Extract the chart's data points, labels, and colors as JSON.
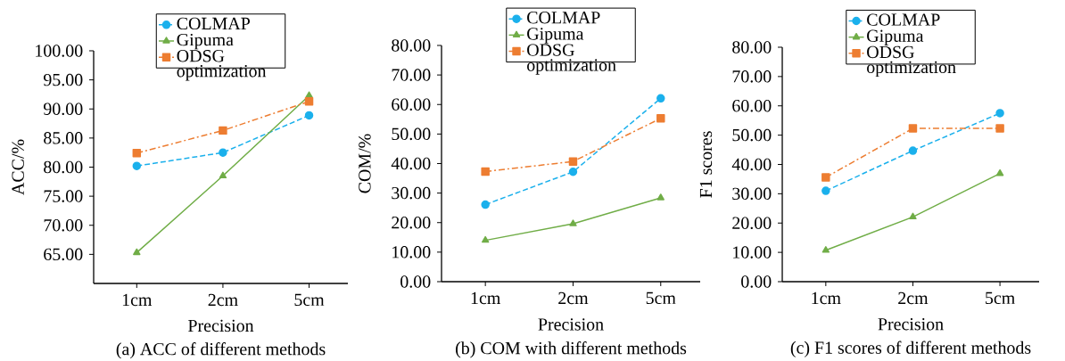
{
  "chart_data": [
    {
      "type": "line",
      "title": "(a) ACC of different methods",
      "xlabel": "Precision",
      "ylabel": "ACC/%",
      "categories": [
        "1cm",
        "2cm",
        "5cm"
      ],
      "series": [
        {
          "name": "COLMAP",
          "color": "#1ab0ec",
          "marker": "circle",
          "line_style": "dashed",
          "values": [
            80.2,
            82.5,
            88.9
          ]
        },
        {
          "name": "Gipuma",
          "color": "#70ad47",
          "marker": "triangle",
          "line_style": "solid",
          "values": [
            65.3,
            78.5,
            92.3
          ]
        },
        {
          "name": "ODSG optimization",
          "color": "#ed7d31",
          "marker": "square",
          "line_style": "dashdot",
          "values": [
            82.4,
            86.3,
            91.3
          ]
        }
      ],
      "ylim": [
        60,
        100
      ],
      "yticks": [
        {
          "value": 65,
          "label": "65.00"
        },
        {
          "value": 70,
          "label": "70.00"
        },
        {
          "value": 75,
          "label": "75.00"
        },
        {
          "value": 80,
          "label": "80.00"
        },
        {
          "value": 85,
          "label": "85.00"
        },
        {
          "value": 90,
          "label": "90.00"
        },
        {
          "value": 95,
          "label": "95.00"
        },
        {
          "value": 100,
          "label": "100.00"
        }
      ],
      "legend": "top",
      "grid": false
    },
    {
      "type": "line",
      "title": "(b) COM with different methods",
      "xlabel": "Precision",
      "ylabel": "COM/%",
      "categories": [
        "1cm",
        "2cm",
        "5cm"
      ],
      "series": [
        {
          "name": "COLMAP",
          "color": "#1ab0ec",
          "marker": "circle",
          "line_style": "dashed",
          "values": [
            26.1,
            37.2,
            62.1
          ]
        },
        {
          "name": "Gipuma",
          "color": "#70ad47",
          "marker": "triangle",
          "line_style": "solid",
          "values": [
            14.0,
            19.6,
            28.4
          ]
        },
        {
          "name": "ODSG optimization",
          "color": "#ed7d31",
          "marker": "square",
          "line_style": "dashdot",
          "values": [
            37.3,
            40.7,
            55.3
          ]
        }
      ],
      "ylim": [
        0,
        80
      ],
      "yticks": [
        {
          "value": 0,
          "label": "0.00"
        },
        {
          "value": 10,
          "label": "10.00"
        },
        {
          "value": 20,
          "label": "20.00"
        },
        {
          "value": 30,
          "label": "30.00"
        },
        {
          "value": 40,
          "label": "40.00"
        },
        {
          "value": 50,
          "label": "50.00"
        },
        {
          "value": 60,
          "label": "60.00"
        },
        {
          "value": 70,
          "label": "70.00"
        },
        {
          "value": 80,
          "label": "80.00"
        }
      ],
      "legend": "top",
      "grid": false
    },
    {
      "type": "line",
      "title": "(c) F1 scores of different methods",
      "xlabel": "Precision",
      "ylabel": "F1 scores",
      "categories": [
        "1cm",
        "2cm",
        "5cm"
      ],
      "series": [
        {
          "name": "COLMAP",
          "color": "#1ab0ec",
          "marker": "circle",
          "line_style": "dashed",
          "values": [
            31.0,
            44.7,
            57.5
          ]
        },
        {
          "name": "Gipuma",
          "color": "#70ad47",
          "marker": "triangle",
          "line_style": "solid",
          "values": [
            10.7,
            22.1,
            36.9
          ]
        },
        {
          "name": "ODSG optimization",
          "color": "#ed7d31",
          "marker": "square",
          "line_style": "dashdot",
          "values": [
            35.6,
            52.3,
            52.3
          ]
        }
      ],
      "ylim": [
        0,
        80
      ],
      "yticks": [
        {
          "value": 0,
          "label": "0.00"
        },
        {
          "value": 10,
          "label": "10.00"
        },
        {
          "value": 20,
          "label": "20.00"
        },
        {
          "value": 30,
          "label": "30.00"
        },
        {
          "value": 40,
          "label": "40.00"
        },
        {
          "value": 50,
          "label": "50.00"
        },
        {
          "value": 60,
          "label": "60.00"
        },
        {
          "value": 70,
          "label": "70.00"
        },
        {
          "value": 80,
          "label": "80.00"
        }
      ],
      "legend": "top",
      "grid": false
    }
  ]
}
